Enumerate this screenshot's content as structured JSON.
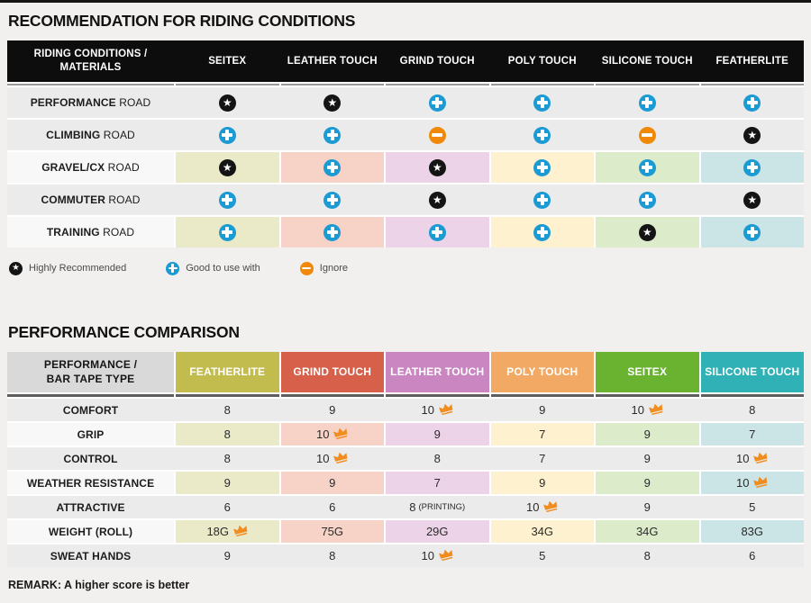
{
  "page": {
    "background": "#f1f0ee"
  },
  "colors": {
    "page_bg": "#f1f0ee",
    "header1_bg": "#0d0d0d",
    "header1_text": "#ffffff",
    "header2_label_bg": "#d9d9d9",
    "row_gray": "#ebebeb",
    "row_label_light": "#f8f8f8",
    "underline1": "#9a9a9a",
    "underline2": "#5e5e5e",
    "plus": "#1b9ad3",
    "minus": "#f0880a",
    "star_bg": "#141414",
    "crown": "#f18c1f",
    "column_tints": [
      "#eaeac9",
      "#f6d2c7",
      "#edd3e8",
      "#fdf1cf",
      "#dcebc9",
      "#cbe5e6"
    ],
    "header2_colors": [
      "#c2bc4f",
      "#d7604b",
      "#c986c1",
      "#f2a963",
      "#69b331",
      "#2fb1b6"
    ]
  },
  "chart_data": [
    {
      "type": "table",
      "title": "RECOMMENDATION FOR RIDING CONDITIONS",
      "columns": [
        "RIDING CONDITIONS /\nMATERIALS",
        "SEITEX",
        "LEATHER TOUCH",
        "GRIND TOUCH",
        "POLY TOUCH",
        "SILICONE TOUCH",
        "FEATHERLITE"
      ],
      "rows": [
        {
          "label_strong": "PERFORMANCE",
          "label_rest": "ROAD",
          "tinted": false,
          "values": [
            "star",
            "star",
            "plus",
            "plus",
            "plus",
            "plus"
          ]
        },
        {
          "label_strong": "CLIMBING",
          "label_rest": "ROAD",
          "tinted": false,
          "values": [
            "plus",
            "plus",
            "minus",
            "plus",
            "minus",
            "star"
          ]
        },
        {
          "label_strong": "GRAVEL/CX",
          "label_rest": "ROAD",
          "tinted": true,
          "values": [
            "star",
            "plus",
            "star",
            "plus",
            "plus",
            "plus"
          ]
        },
        {
          "label_strong": "COMMUTER",
          "label_rest": "ROAD",
          "tinted": false,
          "values": [
            "plus",
            "plus",
            "star",
            "plus",
            "plus",
            "star"
          ]
        },
        {
          "label_strong": "TRAINING",
          "label_rest": "ROAD",
          "tinted": true,
          "values": [
            "plus",
            "plus",
            "plus",
            "plus",
            "star",
            "plus"
          ]
        }
      ],
      "legend": [
        {
          "icon": "star",
          "label": "Highly Recommended"
        },
        {
          "icon": "plus",
          "label": "Good to use with"
        },
        {
          "icon": "minus",
          "label": "Ignore"
        }
      ]
    },
    {
      "type": "table",
      "title": "PERFORMANCE COMPARISON",
      "columns": [
        "PERFORMANCE /\nBAR TAPE TYPE",
        "FEATHERLITE",
        "GRIND TOUCH",
        "LEATHER TOUCH",
        "POLY TOUCH",
        "SEITEX",
        "SILICONE TOUCH"
      ],
      "rows": [
        {
          "label": "COMFORT",
          "tinted": false,
          "cells": [
            {
              "v": "8"
            },
            {
              "v": "9"
            },
            {
              "v": "10",
              "crown": true
            },
            {
              "v": "9"
            },
            {
              "v": "10",
              "crown": true
            },
            {
              "v": "8"
            }
          ]
        },
        {
          "label": "GRIP",
          "tinted": true,
          "cells": [
            {
              "v": "8"
            },
            {
              "v": "10",
              "crown": true
            },
            {
              "v": "9"
            },
            {
              "v": "7"
            },
            {
              "v": "9"
            },
            {
              "v": "7"
            }
          ]
        },
        {
          "label": "CONTROL",
          "tinted": false,
          "cells": [
            {
              "v": "8"
            },
            {
              "v": "10",
              "crown": true
            },
            {
              "v": "8"
            },
            {
              "v": "7"
            },
            {
              "v": "9"
            },
            {
              "v": "10",
              "crown": true
            }
          ]
        },
        {
          "label": "WEATHER RESISTANCE",
          "tinted": true,
          "cells": [
            {
              "v": "9"
            },
            {
              "v": "9"
            },
            {
              "v": "7"
            },
            {
              "v": "9"
            },
            {
              "v": "9"
            },
            {
              "v": "10",
              "crown": true
            }
          ]
        },
        {
          "label": "ATTRACTIVE",
          "tinted": false,
          "cells": [
            {
              "v": "6"
            },
            {
              "v": "6"
            },
            {
              "v": "8",
              "note": "(PRINTING)"
            },
            {
              "v": "10",
              "crown": true
            },
            {
              "v": "9"
            },
            {
              "v": "5"
            }
          ]
        },
        {
          "label": "WEIGHT (ROLL)",
          "tinted": true,
          "cells": [
            {
              "v": "18G",
              "crown": true
            },
            {
              "v": "75G"
            },
            {
              "v": "29G"
            },
            {
              "v": "34G"
            },
            {
              "v": "34G"
            },
            {
              "v": "83G"
            }
          ]
        },
        {
          "label": "SWEAT HANDS",
          "tinted": false,
          "cells": [
            {
              "v": "9"
            },
            {
              "v": "8"
            },
            {
              "v": "10",
              "crown": true
            },
            {
              "v": "5"
            },
            {
              "v": "8"
            },
            {
              "v": "6"
            }
          ]
        }
      ],
      "remark": "REMARK: A higher score is better"
    }
  ]
}
